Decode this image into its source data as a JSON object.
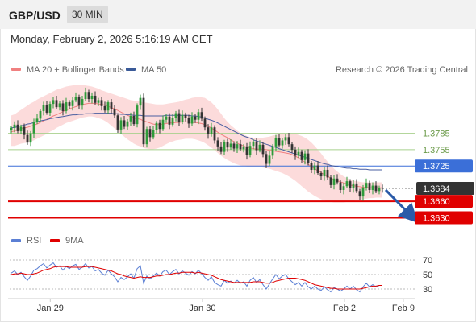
{
  "header": {
    "symbol": "GBP/USD",
    "timeframe": "30 MIN"
  },
  "timestamp": "Monday, February 2, 2026 5:16:19 AM CET",
  "chart_data": {
    "type": "candlestick",
    "legend": [
      {
        "label": "MA 20 + Bollinger Bands",
        "color": "#f08080"
      },
      {
        "label": "MA 50",
        "color": "#3a5a98"
      }
    ],
    "rsi_legend": [
      {
        "label": "RSI",
        "color": "#5b7fd4"
      },
      {
        "label": "9MA",
        "color": "#e00000"
      }
    ],
    "copyright": "Research © 2026 Trading Central",
    "price_range": [
      1.361,
      1.3885
    ],
    "levels": [
      {
        "value": 1.3785,
        "label": "1.3785",
        "style": "green"
      },
      {
        "value": 1.3755,
        "label": "1.3755",
        "style": "green"
      },
      {
        "value": 1.3725,
        "label": "1.3725",
        "style": "blue"
      },
      {
        "value": 1.3684,
        "label": "1.3684",
        "style": "last"
      },
      {
        "value": 1.366,
        "label": "1.3660",
        "style": "red"
      },
      {
        "value": 1.363,
        "label": "1.3630",
        "style": "red"
      }
    ],
    "x_ticks": [
      {
        "label": "Jan 29",
        "pos": 0.1
      },
      {
        "label": "Jan 30",
        "pos": 0.475
      },
      {
        "label": "Feb 2",
        "pos": 0.825
      },
      {
        "label": "Feb 9",
        "pos": 0.97
      }
    ],
    "rsi_ticks": [
      70,
      50,
      30
    ],
    "rsi_range": [
      20,
      80
    ],
    "close": [
      1.3795,
      1.3801,
      1.3789,
      1.3797,
      1.3782,
      1.3768,
      1.3785,
      1.3806,
      1.3812,
      1.3826,
      1.3837,
      1.3823,
      1.3839,
      1.3846,
      1.3833,
      1.384,
      1.3826,
      1.3842,
      1.3835,
      1.3846,
      1.3852,
      1.3836,
      1.3848,
      1.3861,
      1.3848,
      1.3854,
      1.3841,
      1.3846,
      1.3835,
      1.3827,
      1.3842,
      1.3829,
      1.3818,
      1.3792,
      1.3809,
      1.3797,
      1.3807,
      1.3817,
      1.3802,
      1.3836,
      1.385,
      1.3765,
      1.3793,
      1.3778,
      1.3791,
      1.3804,
      1.3793,
      1.381,
      1.3816,
      1.3801,
      1.3813,
      1.3822,
      1.3806,
      1.3819,
      1.3813,
      1.3803,
      1.3816,
      1.381,
      1.3824,
      1.3812,
      1.3796,
      1.3783,
      1.3796,
      1.3772,
      1.3761,
      1.3751,
      1.3769,
      1.3759,
      1.3766,
      1.3757,
      1.3765,
      1.3756,
      1.3761,
      1.3745,
      1.3762,
      1.377,
      1.3754,
      1.3764,
      1.3747,
      1.3729,
      1.3744,
      1.3761,
      1.3776,
      1.3763,
      1.3772,
      1.3778,
      1.3765,
      1.3755,
      1.3744,
      1.3751,
      1.3736,
      1.3748,
      1.373,
      1.3718,
      1.3726,
      1.3712,
      1.3706,
      1.3718,
      1.3704,
      1.369,
      1.3702,
      1.3695,
      1.3681,
      1.3688,
      1.3697,
      1.3684,
      1.3693,
      1.3679,
      1.3669,
      1.3684,
      1.3694,
      1.3681,
      1.3689,
      1.3679,
      1.3685,
      1.3684
    ],
    "ma20": [
      1.3788,
      1.3789,
      1.3792,
      1.3794,
      1.3795,
      1.3796,
      1.3798,
      1.38,
      1.3802,
      1.3805,
      1.3808,
      1.3811,
      1.3814,
      1.3817,
      1.3819,
      1.3822,
      1.3825,
      1.3828,
      1.383,
      1.3832,
      1.3834,
      1.3836,
      1.3838,
      1.3839,
      1.384,
      1.384,
      1.384,
      1.3839,
      1.3838,
      1.3837,
      1.3835,
      1.3832,
      1.383,
      1.3827,
      1.3824,
      1.3821,
      1.3818,
      1.3816,
      1.3813,
      1.3812,
      1.3811,
      1.3808,
      1.3806,
      1.3804,
      1.3802,
      1.3801,
      1.3801,
      1.3802,
      1.3803,
      1.3804,
      1.3804,
      1.3805,
      1.3805,
      1.3806,
      1.3806,
      1.3806,
      1.3805,
      1.3805,
      1.3804,
      1.3803,
      1.3801,
      1.3798,
      1.3795,
      1.3791,
      1.3787,
      1.3783,
      1.378,
      1.3777,
      1.3773,
      1.377,
      1.3767,
      1.3764,
      1.3762,
      1.3759,
      1.3758,
      1.3757,
      1.3756,
      1.3756,
      1.3756,
      1.3755,
      1.3754,
      1.3753,
      1.3752,
      1.3751,
      1.375,
      1.3749,
      1.3748,
      1.3746,
      1.3743,
      1.374,
      1.3736,
      1.3732,
      1.3728,
      1.3724,
      1.372,
      1.3716,
      1.3713,
      1.3709,
      1.3706,
      1.3703,
      1.37,
      1.3698,
      1.3696,
      1.3694,
      1.3692,
      1.369,
      1.3689,
      1.3688,
      1.3687,
      1.3686,
      1.3686,
      1.3685,
      1.3685,
      1.3685,
      1.3685,
      1.3685
    ],
    "ma50": [
      1.3795,
      1.3796,
      1.3797,
      1.3799,
      1.38,
      1.3802,
      1.3803,
      1.3805,
      1.3806,
      1.3808,
      1.3809,
      1.381,
      1.3812,
      1.3813,
      1.3814,
      1.3815,
      1.3816,
      1.3817,
      1.3818,
      1.3819,
      1.3819,
      1.382,
      1.382,
      1.3821,
      1.3821,
      1.3821,
      1.3822,
      1.3822,
      1.3822,
      1.3822,
      1.3822,
      1.3822,
      1.3821,
      1.3821,
      1.382,
      1.382,
      1.3819,
      1.3819,
      1.3818,
      1.3818,
      1.3818,
      1.3817,
      1.3817,
      1.3817,
      1.3817,
      1.3817,
      1.3817,
      1.3817,
      1.3818,
      1.3818,
      1.3818,
      1.3818,
      1.3818,
      1.3818,
      1.3818,
      1.3818,
      1.3817,
      1.3817,
      1.3816,
      1.3815,
      1.3813,
      1.3811,
      1.3809,
      1.3807,
      1.3804,
      1.3801,
      1.3798,
      1.3795,
      1.3792,
      1.3789,
      1.3786,
      1.3783,
      1.378,
      1.3778,
      1.3776,
      1.3773,
      1.3771,
      1.3769,
      1.3767,
      1.3765,
      1.3763,
      1.3761,
      1.3759,
      1.3757,
      1.3755,
      1.3753,
      1.3751,
      1.3749,
      1.3747,
      1.3745,
      1.3743,
      1.3741,
      1.3739,
      1.3737,
      1.3735,
      1.3733,
      1.3731,
      1.3729,
      1.3728,
      1.3726,
      1.3725,
      1.3724,
      1.3723,
      1.3722,
      1.3721,
      1.3721,
      1.372,
      1.372,
      1.3719,
      1.3719,
      1.3719,
      1.3718,
      1.3718,
      1.3718,
      1.3718,
      1.3718
    ],
    "bb_upper": [
      1.3818,
      1.382,
      1.3824,
      1.3828,
      1.3832,
      1.3836,
      1.384,
      1.3843,
      1.3847,
      1.385,
      1.3853,
      1.3856,
      1.3859,
      1.3862,
      1.3865,
      1.3867,
      1.3869,
      1.3871,
      1.3872,
      1.3873,
      1.3874,
      1.3874,
      1.3874,
      1.3873,
      1.3872,
      1.3871,
      1.3869,
      1.3867,
      1.3864,
      1.3862,
      1.386,
      1.3858,
      1.3856,
      1.3854,
      1.3852,
      1.385,
      1.3848,
      1.3846,
      1.3845,
      1.3844,
      1.3843,
      1.3842,
      1.3841,
      1.384,
      1.3839,
      1.3838,
      1.3838,
      1.3838,
      1.3839,
      1.384,
      1.3841,
      1.3842,
      1.3843,
      1.3845,
      1.3847,
      1.3848,
      1.385,
      1.3851,
      1.3852,
      1.3851,
      1.385,
      1.3846,
      1.3842,
      1.3836,
      1.3829,
      1.3821,
      1.3813,
      1.3806,
      1.38,
      1.3795,
      1.379,
      1.3786,
      1.3783,
      1.378,
      1.3778,
      1.3777,
      1.3776,
      1.3776,
      1.3777,
      1.3778,
      1.3779,
      1.3781,
      1.3782,
      1.3783,
      1.3784,
      1.3785,
      1.3785,
      1.3785,
      1.3784,
      1.3782,
      1.378,
      1.3777,
      1.3773,
      1.3768,
      1.3762,
      1.3755,
      1.3748,
      1.374,
      1.3733,
      1.3726,
      1.372,
      1.3715,
      1.371,
      1.3706,
      1.3703,
      1.37,
      1.3698,
      1.3697,
      1.3696,
      1.3695,
      1.3695,
      1.3695,
      1.3695,
      1.3695,
      1.3695,
      1.3695
    ],
    "bb_lower": [
      1.3762,
      1.3762,
      1.3764,
      1.3766,
      1.3767,
      1.3768,
      1.377,
      1.3772,
      1.3775,
      1.3778,
      1.3781,
      1.3784,
      1.3788,
      1.3791,
      1.3795,
      1.3798,
      1.3801,
      1.3804,
      1.3806,
      1.3808,
      1.381,
      1.3812,
      1.3814,
      1.3815,
      1.3816,
      1.3816,
      1.3815,
      1.3813,
      1.3811,
      1.3808,
      1.3804,
      1.3799,
      1.3794,
      1.3789,
      1.3784,
      1.3779,
      1.3774,
      1.377,
      1.3766,
      1.3763,
      1.3761,
      1.3758,
      1.3757,
      1.3756,
      1.3756,
      1.3757,
      1.3759,
      1.3762,
      1.3765,
      1.3768,
      1.377,
      1.3772,
      1.3773,
      1.3774,
      1.3775,
      1.3775,
      1.3775,
      1.3774,
      1.3772,
      1.377,
      1.3767,
      1.3763,
      1.3759,
      1.3754,
      1.3749,
      1.3744,
      1.374,
      1.3736,
      1.3733,
      1.373,
      1.3728,
      1.3726,
      1.3725,
      1.3724,
      1.3723,
      1.3723,
      1.3723,
      1.3723,
      1.3722,
      1.3721,
      1.372,
      1.3718,
      1.3716,
      1.3714,
      1.3712,
      1.3709,
      1.3706,
      1.3702,
      1.3698,
      1.3693,
      1.3688,
      1.3683,
      1.3678,
      1.3674,
      1.367,
      1.3667,
      1.3664,
      1.3662,
      1.366,
      1.3659,
      1.3658,
      1.3658,
      1.3658,
      1.3658,
      1.3659,
      1.366,
      1.3661,
      1.3662,
      1.3663,
      1.3664,
      1.3665,
      1.3666,
      1.3666,
      1.3667,
      1.3667,
      1.3667
    ],
    "rsi": [
      52,
      55,
      50,
      53,
      47,
      42,
      48,
      56,
      58,
      62,
      65,
      59,
      63,
      66,
      60,
      62,
      56,
      61,
      58,
      62,
      64,
      57,
      60,
      65,
      59,
      61,
      55,
      57,
      52,
      49,
      56,
      51,
      47,
      40,
      46,
      43,
      47,
      51,
      45,
      58,
      62,
      38,
      48,
      44,
      48,
      52,
      48,
      54,
      56,
      50,
      54,
      57,
      51,
      55,
      52,
      49,
      54,
      51,
      56,
      51,
      46,
      42,
      47,
      39,
      36,
      34,
      42,
      38,
      41,
      38,
      42,
      38,
      40,
      34,
      42,
      46,
      39,
      43,
      36,
      30,
      37,
      44,
      50,
      44,
      48,
      50,
      44,
      40,
      36,
      39,
      34,
      39,
      33,
      30,
      34,
      30,
      28,
      33,
      29,
      26,
      32,
      30,
      27,
      30,
      34,
      30,
      34,
      29,
      26,
      33,
      38,
      33,
      36,
      33,
      35,
      35
    ],
    "rsi_ma": [
      50,
      51,
      51,
      52,
      51,
      50,
      50,
      51,
      52,
      54,
      56,
      57,
      58,
      60,
      61,
      61,
      61,
      61,
      60,
      60,
      60,
      60,
      60,
      61,
      61,
      61,
      60,
      59,
      58,
      57,
      56,
      55,
      53,
      51,
      50,
      48,
      47,
      46,
      45,
      46,
      47,
      46,
      46,
      46,
      47,
      48,
      48,
      49,
      50,
      50,
      51,
      52,
      52,
      53,
      53,
      53,
      53,
      52,
      53,
      52,
      51,
      50,
      49,
      47,
      45,
      43,
      42,
      41,
      40,
      39,
      39,
      39,
      39,
      39,
      39,
      40,
      40,
      40,
      39,
      38,
      38,
      39,
      41,
      42,
      43,
      44,
      45,
      45,
      45,
      44,
      43,
      42,
      40,
      38,
      36,
      35,
      34,
      33,
      32,
      31,
      31,
      30,
      30,
      30,
      30,
      30,
      30,
      30,
      30,
      31,
      32,
      33,
      34,
      34,
      35,
      35
    ]
  }
}
